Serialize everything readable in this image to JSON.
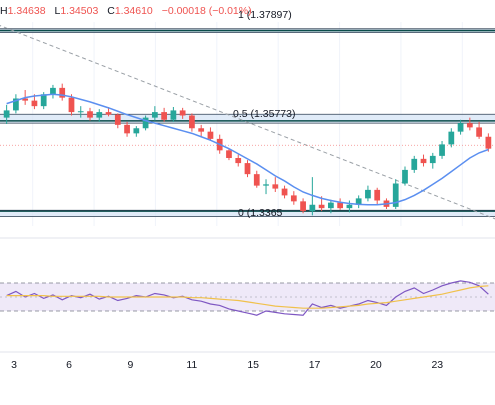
{
  "ohlc_header": {
    "high_label": "H",
    "high": "1.34638",
    "low_label": "L",
    "low": "1.34503",
    "close_label": "C",
    "close": "1.34610",
    "change": "−0.00018 (−0.01%)"
  },
  "fib_labels": {
    "level_1": "1 (1.37897)",
    "level_05": "0.5 (1.35773)",
    "level_0": "0 (1.3365"
  },
  "colors": {
    "up": "#26a69a",
    "down": "#ef5350",
    "ma": "#5b8ff0",
    "rsi": "#7e57c2",
    "rsi_ma": "#f0c14b",
    "zone": "#d5e4f5",
    "fib_line": "#0a4d4a",
    "rsi_band": "#e8dff5"
  },
  "chart_data": [
    {
      "type": "candlestick",
      "title": "",
      "x_tick_labels": [
        "3",
        "6",
        "9",
        "11",
        "15",
        "17",
        "20",
        "23"
      ],
      "ylim": [
        1.333,
        1.381
      ],
      "fib_levels": [
        {
          "ratio": "1",
          "value": 1.37897
        },
        {
          "ratio": "0.5",
          "value": 1.35773
        },
        {
          "ratio": "0",
          "value": 1.3365
        }
      ],
      "zones": [
        [
          1.3785,
          1.3794
        ],
        [
          1.3572,
          1.3593
        ],
        [
          1.3352,
          1.3367
        ]
      ],
      "dashed_trendline": [
        [
          -1,
          1.3804
        ],
        [
          33,
          1.3378
        ]
      ],
      "close_price_line": 1.352,
      "candles": [
        [
          1.3585,
          1.3615,
          1.357,
          1.3602
        ],
        [
          1.3602,
          1.364,
          1.3595,
          1.363
        ],
        [
          1.363,
          1.365,
          1.3615,
          1.3625
        ],
        [
          1.3625,
          1.364,
          1.3605,
          1.3612
        ],
        [
          1.3612,
          1.3645,
          1.3605,
          1.364
        ],
        [
          1.364,
          1.3662,
          1.363,
          1.3655
        ],
        [
          1.3655,
          1.3665,
          1.3625,
          1.3632
        ],
        [
          1.3632,
          1.364,
          1.359,
          1.3598
        ],
        [
          1.3598,
          1.3612,
          1.3585,
          1.36
        ],
        [
          1.36,
          1.3608,
          1.3578,
          1.3585
        ],
        [
          1.3585,
          1.3605,
          1.3575,
          1.3598
        ],
        [
          1.3598,
          1.361,
          1.3588,
          1.3592
        ],
        [
          1.3592,
          1.3595,
          1.356,
          1.3568
        ],
        [
          1.3568,
          1.3575,
          1.354,
          1.3548
        ],
        [
          1.3548,
          1.3565,
          1.354,
          1.356
        ],
        [
          1.356,
          1.359,
          1.3555,
          1.3585
        ],
        [
          1.3585,
          1.3612,
          1.3578,
          1.3598
        ],
        [
          1.3598,
          1.3608,
          1.3575,
          1.358
        ],
        [
          1.358,
          1.361,
          1.3575,
          1.3602
        ],
        [
          1.3602,
          1.3608,
          1.3582,
          1.359
        ],
        [
          1.359,
          1.3595,
          1.3552,
          1.356
        ],
        [
          1.356,
          1.3568,
          1.354,
          1.3552
        ],
        [
          1.3552,
          1.3562,
          1.353,
          1.3535
        ],
        [
          1.3535,
          1.3545,
          1.35,
          1.3508
        ],
        [
          1.3508,
          1.3512,
          1.3485,
          1.349
        ],
        [
          1.349,
          1.3498,
          1.347,
          1.3478
        ],
        [
          1.3478,
          1.3485,
          1.3445,
          1.3452
        ],
        [
          1.3452,
          1.346,
          1.342,
          1.3425
        ],
        [
          1.3425,
          1.344,
          1.3405,
          1.3428
        ],
        [
          1.3428,
          1.3445,
          1.341,
          1.3418
        ],
        [
          1.3418,
          1.3425,
          1.3395,
          1.3402
        ],
        [
          1.3402,
          1.3412,
          1.338,
          1.3388
        ],
        [
          1.3388,
          1.3395,
          1.336,
          1.3365
        ],
        [
          1.3365,
          1.3445,
          1.3355,
          1.338
        ],
        [
          1.338,
          1.34,
          1.3365,
          1.3372
        ],
        [
          1.3372,
          1.3392,
          1.336,
          1.3385
        ],
        [
          1.3385,
          1.3395,
          1.3368,
          1.3372
        ],
        [
          1.3372,
          1.339,
          1.3362,
          1.338
        ],
        [
          1.338,
          1.3402,
          1.3372,
          1.3395
        ],
        [
          1.3395,
          1.3425,
          1.3388,
          1.3415
        ],
        [
          1.3415,
          1.342,
          1.338,
          1.339
        ],
        [
          1.339,
          1.3395,
          1.337,
          1.3375
        ],
        [
          1.3375,
          1.344,
          1.337,
          1.343
        ],
        [
          1.343,
          1.347,
          1.3425,
          1.3462
        ],
        [
          1.3462,
          1.3495,
          1.3455,
          1.3488
        ],
        [
          1.3488,
          1.3498,
          1.347,
          1.3478
        ],
        [
          1.3478,
          1.3502,
          1.3465,
          1.3495
        ],
        [
          1.3495,
          1.353,
          1.3488,
          1.3522
        ],
        [
          1.3522,
          1.356,
          1.3515,
          1.3552
        ],
        [
          1.3552,
          1.358,
          1.3545,
          1.3572
        ],
        [
          1.3572,
          1.3585,
          1.3555,
          1.3562
        ],
        [
          1.3562,
          1.3575,
          1.3535,
          1.354
        ],
        [
          1.354,
          1.3548,
          1.3505,
          1.3512
        ]
      ],
      "ma": [
        1.3618,
        1.3625,
        1.3632,
        1.3636,
        1.3638,
        1.364,
        1.3638,
        1.3634,
        1.3628,
        1.3622,
        1.3615,
        1.3608,
        1.36,
        1.3592,
        1.3585,
        1.3578,
        1.3572,
        1.3566,
        1.356,
        1.3554,
        1.3548,
        1.354,
        1.3532,
        1.3522,
        1.3512,
        1.35,
        1.3488,
        1.3476,
        1.3462,
        1.3448,
        1.3436,
        1.3422,
        1.341,
        1.3402,
        1.3395,
        1.339,
        1.3386,
        1.3383,
        1.3381,
        1.338,
        1.338,
        1.3382,
        1.3385,
        1.3392,
        1.3402,
        1.3414,
        1.3428,
        1.3442,
        1.3458,
        1.3474,
        1.349,
        1.3502,
        1.351
      ]
    },
    {
      "type": "line",
      "title": "",
      "ylim": [
        0,
        100
      ],
      "band": [
        30,
        70
      ],
      "mid": 50,
      "series": [
        {
          "values": [
            52,
            58,
            50,
            55,
            48,
            53,
            46,
            52,
            49,
            54,
            47,
            51,
            45,
            48,
            52,
            50,
            55,
            53,
            49,
            51,
            46,
            44,
            40,
            38,
            33,
            30,
            27,
            24,
            30,
            28,
            26,
            25,
            24,
            40,
            35,
            38,
            34,
            37,
            40,
            45,
            42,
            38,
            50,
            58,
            63,
            55,
            60,
            66,
            70,
            73,
            71,
            66,
            54
          ]
        },
        {
          "values": [
            52,
            52,
            52,
            52,
            52,
            51,
            51,
            51,
            51,
            51,
            51,
            50,
            50,
            50,
            50,
            50,
            50,
            50,
            50,
            50,
            49,
            49,
            48,
            47,
            46,
            45,
            43,
            41,
            39,
            37,
            36,
            35,
            34,
            34,
            34,
            35,
            36,
            37,
            38,
            40,
            41,
            42,
            44,
            46,
            48,
            50,
            52,
            54,
            57,
            60,
            63,
            65,
            66
          ]
        }
      ]
    }
  ]
}
